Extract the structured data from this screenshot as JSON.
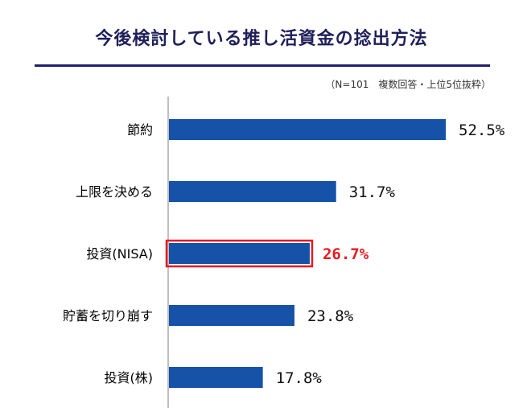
{
  "title": "今後検討している推し活資金の捻出方法",
  "note": "（N=101　複数回答・上位5位抜粋）",
  "colors": {
    "bar": "#1552a8",
    "highlight": "#e8191e",
    "title_rule": "#1f1f6e"
  },
  "chart_data": {
    "type": "bar",
    "orientation": "horizontal",
    "categories": [
      "節約",
      "上限を決める",
      "投資(NISA)",
      "貯蓄を切り崩す",
      "投資(株)"
    ],
    "values": [
      52.5,
      31.7,
      26.7,
      23.8,
      17.8
    ],
    "value_labels": [
      "52.5%",
      "31.7%",
      "26.7%",
      "23.8%",
      "17.8%"
    ],
    "highlight_index": 2,
    "xlim": [
      0,
      55
    ],
    "grid": false,
    "legend": "none"
  }
}
